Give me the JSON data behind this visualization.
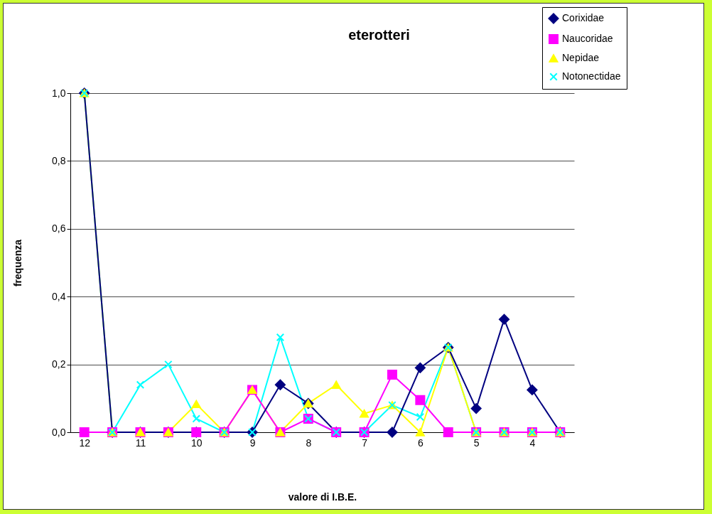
{
  "chart_data": {
    "type": "line",
    "title": "eterotteri",
    "xlabel": "valore di I.B.E.",
    "ylabel": "frequenza",
    "categories": [
      "12",
      null,
      "11",
      null,
      "10",
      null,
      "9",
      null,
      "8",
      null,
      "7",
      null,
      "6",
      null,
      "5",
      null,
      "4",
      null
    ],
    "series": [
      {
        "name": "Corixidae",
        "color": "#000080",
        "marker": "diamond",
        "values": [
          1.0,
          0,
          0,
          0,
          0,
          0,
          0,
          0.14,
          0.085,
          0,
          0,
          0,
          0.19,
          0.25,
          0.07,
          0.333,
          0.125,
          0
        ]
      },
      {
        "name": "Naucoridae",
        "color": "#ff00ff",
        "marker": "square",
        "values": [
          0,
          0,
          0,
          0,
          0,
          0,
          0.125,
          0,
          0.04,
          0,
          0,
          0.17,
          0.095,
          0,
          0,
          0,
          0,
          0
        ]
      },
      {
        "name": "Nepidae",
        "color": "#ffff00",
        "marker": "triangle",
        "values": [
          1.0,
          0,
          0,
          0,
          0.083,
          0,
          0.125,
          0,
          0.085,
          0.14,
          0.055,
          0.08,
          0,
          0.25,
          0,
          0,
          0,
          0
        ]
      },
      {
        "name": "Notonectidae",
        "color": "#00ffff",
        "marker": "cross",
        "values": [
          1.0,
          0,
          0.14,
          0.2,
          0.04,
          0,
          0,
          0.28,
          0.04,
          0,
          0,
          0.08,
          0.045,
          0.25,
          0,
          0,
          0,
          0
        ]
      }
    ],
    "ylim": [
      0,
      1
    ],
    "yticks": [
      {
        "value": 0,
        "label": "0,0"
      },
      {
        "value": 0.2,
        "label": "0,2"
      },
      {
        "value": 0.4,
        "label": "0,4"
      },
      {
        "value": 0.6,
        "label": "0,6"
      },
      {
        "value": 0.8,
        "label": "0,8"
      },
      {
        "value": 1,
        "label": "1,0"
      }
    ],
    "grid": "y",
    "legend": "top right"
  }
}
